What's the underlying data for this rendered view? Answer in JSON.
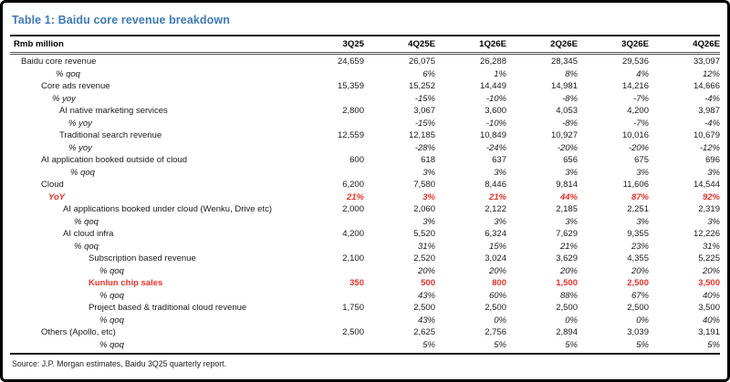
{
  "title": "Table 1: Baidu core revenue breakdown",
  "colors": {
    "title-color": "#3d7ab8",
    "red-color": "#e63329"
  },
  "table": {
    "unit_label": "Rmb million",
    "columns": [
      "3Q25",
      "4Q25E",
      "1Q26E",
      "2Q26E",
      "3Q26E",
      "4Q26E"
    ],
    "rows": [
      {
        "label": "Baidu core revenue",
        "indent": 12,
        "style": "num",
        "values": [
          "24,659",
          "26,075",
          "26,288",
          "28,345",
          "29,536",
          "33,097"
        ]
      },
      {
        "label": "% qoq",
        "indent": 50,
        "style": "pct",
        "values": [
          "",
          "6%",
          "1%",
          "8%",
          "4%",
          "12%"
        ]
      },
      {
        "label": "Core ads revenue",
        "indent": 34,
        "style": "num",
        "values": [
          "15,359",
          "15,252",
          "14,449",
          "14,981",
          "14,216",
          "14,666"
        ]
      },
      {
        "label": "% yoy",
        "indent": 46,
        "style": "pct",
        "values": [
          "",
          "-15%",
          "-10%",
          "-8%",
          "-7%",
          "-4%"
        ]
      },
      {
        "label": "AI native marketing services",
        "indent": 54,
        "style": "num",
        "values": [
          "2,800",
          "3,067",
          "3,600",
          "4,053",
          "4,200",
          "3,987"
        ]
      },
      {
        "label": "% yoy",
        "indent": 64,
        "style": "pct",
        "values": [
          "",
          "-15%",
          "-10%",
          "-8%",
          "-7%",
          "-4%"
        ]
      },
      {
        "label": "Traditional search revenue",
        "indent": 54,
        "style": "num",
        "values": [
          "12,559",
          "12,185",
          "10,849",
          "10,927",
          "10,016",
          "10,679"
        ]
      },
      {
        "label": "% yoy",
        "indent": 64,
        "style": "pct",
        "values": [
          "",
          "-28%",
          "-24%",
          "-20%",
          "-20%",
          "-12%"
        ]
      },
      {
        "label": "AI application booked outside of cloud",
        "indent": 34,
        "style": "num",
        "values": [
          "600",
          "618",
          "637",
          "656",
          "675",
          "696"
        ]
      },
      {
        "label": "% qoq",
        "indent": 66,
        "style": "pct",
        "values": [
          "",
          "3%",
          "3%",
          "3%",
          "3%",
          "3%"
        ]
      },
      {
        "label": "Cloud",
        "indent": 34,
        "style": "num",
        "values": [
          "6,200",
          "7,580",
          "8,446",
          "9,814",
          "11,606",
          "14,544"
        ]
      },
      {
        "label": "YoY",
        "indent": 42,
        "style": "red-pct",
        "values": [
          "21%",
          "3%",
          "21%",
          "44%",
          "87%",
          "92%"
        ]
      },
      {
        "label": "AI applications booked under cloud (Wenku, Drive etc)",
        "indent": 58,
        "style": "num",
        "values": [
          "2,000",
          "2,060",
          "2,122",
          "2,185",
          "2,251",
          "2,319"
        ]
      },
      {
        "label": "% qoq",
        "indent": 70,
        "style": "pct",
        "values": [
          "",
          "3%",
          "3%",
          "3%",
          "3%",
          "3%"
        ]
      },
      {
        "label": "AI cloud infra",
        "indent": 58,
        "style": "num",
        "values": [
          "4,200",
          "5,520",
          "6,324",
          "7,629",
          "9,355",
          "12,226"
        ]
      },
      {
        "label": "% qoq",
        "indent": 70,
        "style": "pct",
        "values": [
          "",
          "31%",
          "15%",
          "21%",
          "23%",
          "31%"
        ]
      },
      {
        "label": "Subscription based revenue",
        "indent": 86,
        "style": "num",
        "values": [
          "2,100",
          "2,520",
          "3,024",
          "3,629",
          "4,355",
          "5,225"
        ]
      },
      {
        "label": "% qoq",
        "indent": 98,
        "style": "pct",
        "values": [
          "",
          "20%",
          "20%",
          "20%",
          "20%",
          "20%"
        ]
      },
      {
        "label": "Kunlun chip sales",
        "indent": 86,
        "style": "red-bold",
        "values": [
          "350",
          "500",
          "800",
          "1,500",
          "2,500",
          "3,500"
        ]
      },
      {
        "label": "% qoq",
        "indent": 98,
        "style": "pct",
        "values": [
          "",
          "43%",
          "60%",
          "88%",
          "67%",
          "40%"
        ]
      },
      {
        "label": "Project based & traditional cloud revenue",
        "indent": 86,
        "style": "num",
        "values": [
          "1,750",
          "2,500",
          "2,500",
          "2,500",
          "2,500",
          "3,500"
        ]
      },
      {
        "label": "% qoq",
        "indent": 98,
        "style": "pct",
        "values": [
          "",
          "43%",
          "0%",
          "0%",
          "0%",
          "40%"
        ]
      },
      {
        "label": "Others (Apollo, etc)",
        "indent": 34,
        "style": "num",
        "values": [
          "2,500",
          "2,625",
          "2,756",
          "2,894",
          "3,039",
          "3,191"
        ]
      },
      {
        "label": "% qoq",
        "indent": 98,
        "style": "pct",
        "values": [
          "",
          "5%",
          "5%",
          "5%",
          "5%",
          "5%"
        ]
      }
    ]
  },
  "source": "Source: J.P. Morgan estimates, Baidu 3Q25 quarterly report."
}
